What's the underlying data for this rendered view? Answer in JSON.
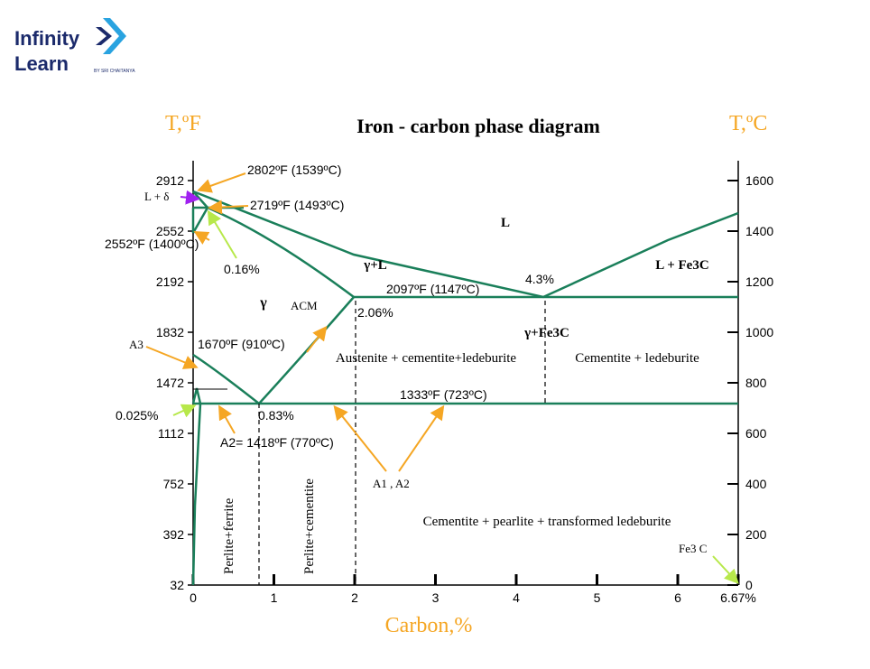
{
  "logo": {
    "line1": "Infinity",
    "line2": "Learn",
    "tagline": "BY SRI CHAITANYA"
  },
  "title": "Iron - carbon phase diagram",
  "left_axis_unit": "T,ºF",
  "right_axis_unit": "T,ºC",
  "x_axis_label": "Carbon,%",
  "colors": {
    "line": "#1a7f5a",
    "orange": "#f5a623",
    "axis_label": "#f5a623",
    "purple": "#a020f0",
    "lime": "#b7e84a"
  },
  "chart_data": {
    "type": "phase-diagram",
    "x_ticks": [
      "0",
      "1",
      "2",
      "3",
      "4",
      "5",
      "6",
      "6.67%"
    ],
    "y_left_ticks": [
      "32",
      "392",
      "752",
      "1112",
      "1472",
      "1832",
      "2192",
      "2552",
      "2912"
    ],
    "y_right_ticks": [
      "0",
      "200",
      "400",
      "600",
      "800",
      "1000",
      "1200",
      "1400",
      "1600"
    ],
    "key_points": [
      {
        "carbon": 0.16,
        "temp_c": 1493
      },
      {
        "carbon": 2.06,
        "temp_c": 1147
      },
      {
        "carbon": 4.3,
        "temp_c": 1147
      },
      {
        "carbon": 0.83,
        "temp_c": 723
      },
      {
        "carbon": 0.025,
        "temp_c": 723
      },
      {
        "carbon": 6.67,
        "temp_c": 0
      }
    ]
  },
  "labels": {
    "t_2802": "2802ºF (1539ºC)",
    "t_2719": "2719ºF (1493ºC)",
    "t_2552": "2552ºF (1400ºC)",
    "t_2097": "2097ºF (1147ºC)",
    "t_1670": "1670ºF (910ºC)",
    "t_1333": "1333ºF (723ºC)",
    "t_1418": "A2= 1418ºF (770ºC)",
    "pct_016": "0.16%",
    "pct_43": "4.3%",
    "pct_206": "2.06%",
    "pct_0025": "0.025%",
    "pct_083": "0.83%",
    "a3": "A3",
    "acm": "ACM",
    "a1a2": "A1 , A2",
    "fe3c": "Fe3 C",
    "l_delta": "L + δ"
  },
  "regions": {
    "L": "L",
    "gamma_L": "γ+L",
    "L_Fe3C": "L + Fe3C",
    "gamma": "γ",
    "gamma_Fe3C": "γ+Fe3C",
    "austenite": "Austenite + cementite+ledeburite",
    "cementite_led": "Cementite + ledeburite",
    "bottom": "Cementite +  pearlite + transformed  ledeburite",
    "pf": "Perlite+ferrite",
    "pc": "Perlite+cementite"
  }
}
